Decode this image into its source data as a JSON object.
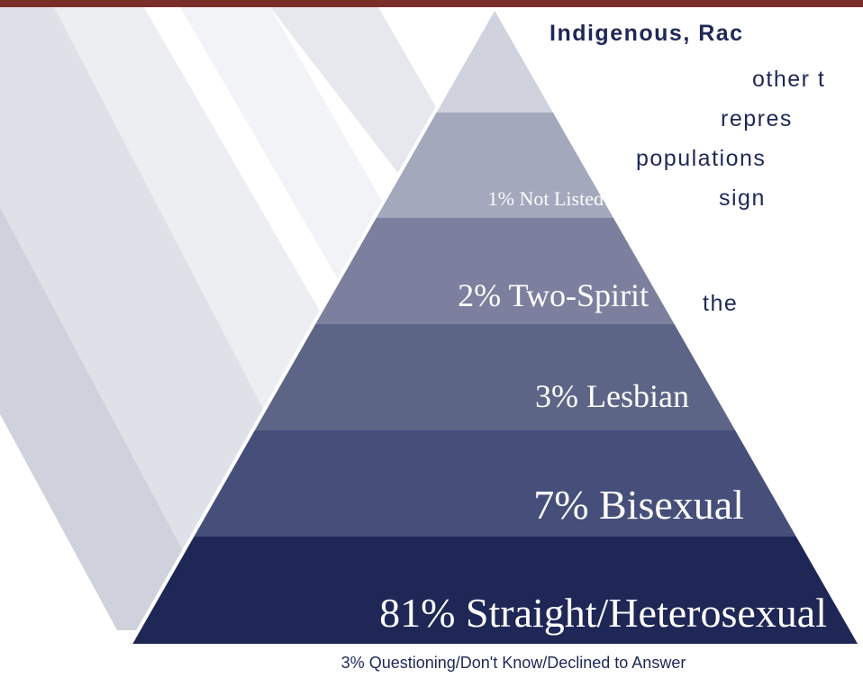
{
  "pyramid": {
    "layers": [
      {
        "label": "1% Not Listed"
      },
      {
        "label": "2% Two-Spirit"
      },
      {
        "label": "3% Lesbian"
      },
      {
        "label": "7% Bisexual"
      },
      {
        "label": "81% Straight/Heterosexual"
      }
    ],
    "footnote": "3% Questioning/Don't Know/Declined to Answer"
  },
  "side_text": {
    "heading": "Indigenous, Rac",
    "lines": [
      "other t",
      "repres",
      "populations",
      "sign",
      "the"
    ]
  }
}
